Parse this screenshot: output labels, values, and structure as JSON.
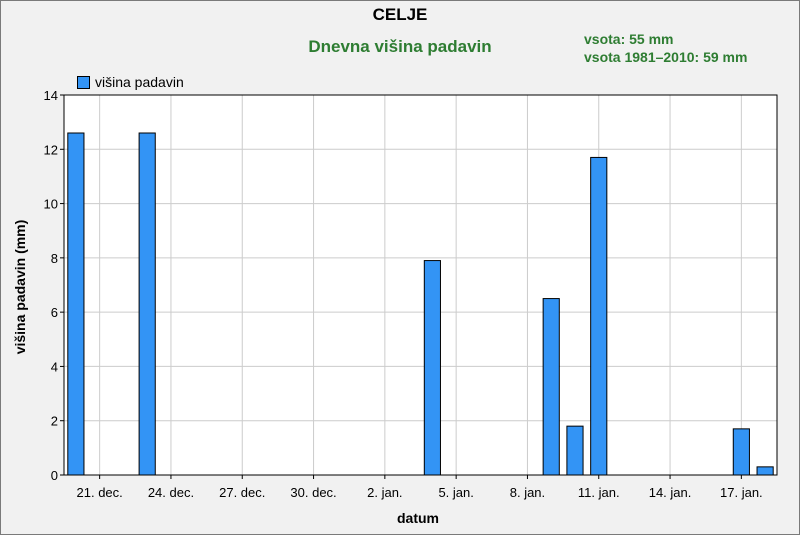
{
  "header": {
    "title": "CELJE",
    "subtitle": "Dnevna višina padavin",
    "sum": "vsota: 55 mm",
    "sum_normal": "vsota 1981–2010: 59 mm"
  },
  "colors": {
    "bar": "#3394f5",
    "grid": "#cccccc",
    "accent": "#2e7d32"
  },
  "chart_data": {
    "type": "bar",
    "title": "CELJE",
    "subtitle": "Dnevna višina padavin",
    "xlabel": "datum",
    "ylabel": "višina padavin (mm)",
    "ylim": [
      0,
      14
    ],
    "yticks": [
      0,
      2,
      4,
      6,
      8,
      10,
      12,
      14
    ],
    "grid": true,
    "legend_position": "top-left",
    "x_dates": [
      "2018-12-20",
      "2018-12-21",
      "2018-12-22",
      "2018-12-23",
      "2018-12-24",
      "2018-12-25",
      "2018-12-26",
      "2018-12-27",
      "2018-12-28",
      "2018-12-29",
      "2018-12-30",
      "2018-12-31",
      "2019-01-01",
      "2019-01-02",
      "2019-01-03",
      "2019-01-04",
      "2019-01-05",
      "2019-01-06",
      "2019-01-07",
      "2019-01-08",
      "2019-01-09",
      "2019-01-10",
      "2019-01-11",
      "2019-01-12",
      "2019-01-13",
      "2019-01-14",
      "2019-01-15",
      "2019-01-16",
      "2019-01-17",
      "2019-01-18"
    ],
    "xtick_labels": [
      "21. dec.",
      "24. dec.",
      "27. dec.",
      "30. dec.",
      "2. jan.",
      "5. jan.",
      "8. jan.",
      "11. jan.",
      "14. jan.",
      "17. jan."
    ],
    "series": [
      {
        "name": "višina padavin",
        "values": [
          12.6,
          0,
          0,
          12.6,
          0,
          0,
          0,
          0,
          0,
          0,
          0,
          0,
          0,
          0,
          0,
          7.9,
          0,
          0,
          0,
          0,
          6.5,
          1.8,
          11.7,
          0,
          0,
          0,
          0,
          0,
          1.7,
          0.3
        ]
      }
    ]
  }
}
